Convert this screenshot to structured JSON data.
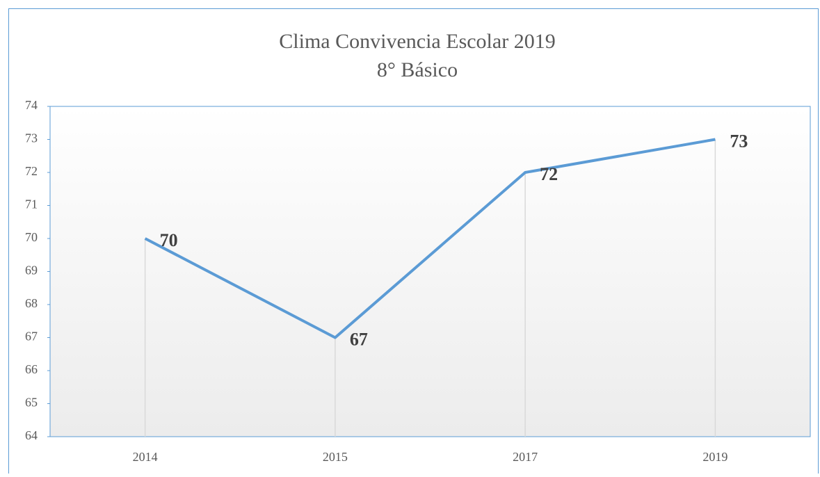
{
  "chart_data": {
    "type": "line",
    "title": "Clima Convivencia Escolar 2019",
    "subtitle": "8° Básico",
    "categories": [
      "2014",
      "2015",
      "2017",
      "2019"
    ],
    "values": [
      70,
      67,
      72,
      73
    ],
    "color": "#5b9bd5",
    "ylim": [
      64,
      74
    ],
    "yticks": [
      64,
      65,
      66,
      67,
      68,
      69,
      70,
      71,
      72,
      73,
      74
    ],
    "data_labels": true
  }
}
